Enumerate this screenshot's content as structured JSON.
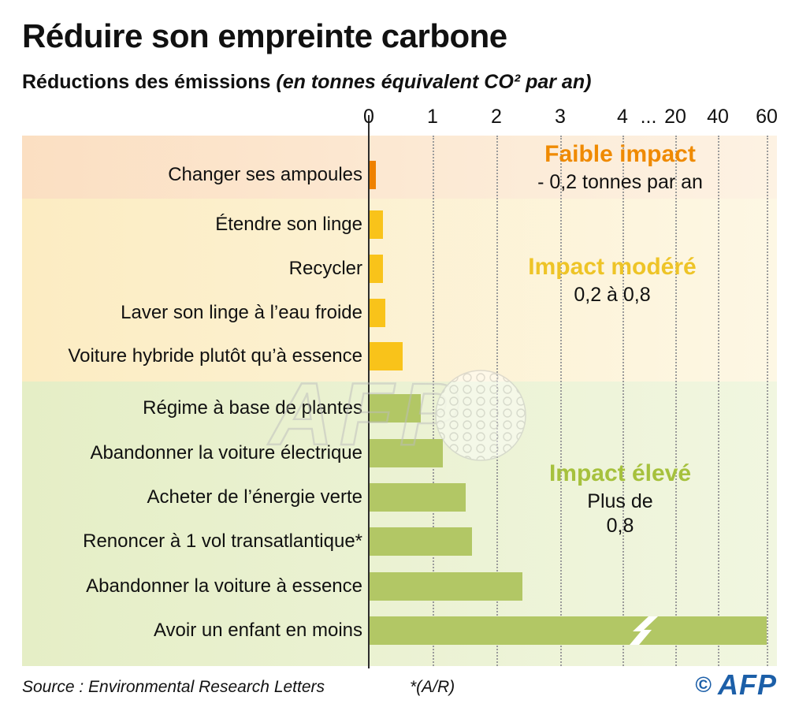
{
  "header": {
    "title": "Réduire son empreinte carbone",
    "subtitle_bold": "Réductions des émissions",
    "subtitle_italic": "(en tonnes équivalent CO² par an)"
  },
  "footer": {
    "source": "Source : Environmental Research Letters",
    "note": "*(A/R)",
    "copyright": "©",
    "logo": "AFP"
  },
  "watermark": "AFP",
  "colors": {
    "axis": "#2c2c2c",
    "gridline": "#9b9b9b",
    "text": "#111111",
    "afp_blue": "#1c5fa8"
  },
  "chart_data": {
    "type": "bar",
    "orientation": "horizontal",
    "title": "Réduire son empreinte carbone",
    "subtitle": "Réductions des émissions (en tonnes équivalent CO² par an)",
    "unit": "tonnes équivalent CO² par an",
    "x_ticks": [
      "0",
      "1",
      "2",
      "3",
      "4",
      "...",
      "20",
      "40",
      "60"
    ],
    "axis_break_between": [
      4,
      20
    ],
    "grid": true,
    "groups": [
      {
        "name": "Faible impact",
        "range_label": "- 0,2 tonnes par an",
        "label_color": "#ef8a00",
        "bar_color": "#ee8100",
        "band_gradient": [
          "#fbdfc2",
          "#fdf2e3"
        ],
        "categories": [
          "Changer ses ampoules"
        ],
        "values": [
          0.1
        ]
      },
      {
        "name": "Impact modéré",
        "range_label": "0,2 à 0,8",
        "label_color": "#eec427",
        "bar_color": "#f9c31a",
        "band_gradient": [
          "#fcecc2",
          "#fdf7e4"
        ],
        "categories": [
          "Étendre son linge",
          "Recycler",
          "Laver son linge à l’eau froide",
          "Voiture hybride plutôt qu’à essence"
        ],
        "values": [
          0.21,
          0.21,
          0.25,
          0.52
        ]
      },
      {
        "name": "Impact élevé",
        "range_label": "Plus de 0,8",
        "label_color": "#a6c13d",
        "bar_color": "#b2c765",
        "band_gradient": [
          "#e5eec6",
          "#f1f6e0"
        ],
        "categories": [
          "Régime à base de plantes",
          "Abandonner la voiture électrique",
          "Acheter de l’énergie verte",
          "Renoncer à 1 vol transatlantique*",
          "Abandonner la voiture à essence",
          "Avoir un enfant en moins"
        ],
        "values": [
          0.8,
          1.15,
          1.5,
          1.6,
          2.4,
          58.6
        ]
      }
    ]
  }
}
